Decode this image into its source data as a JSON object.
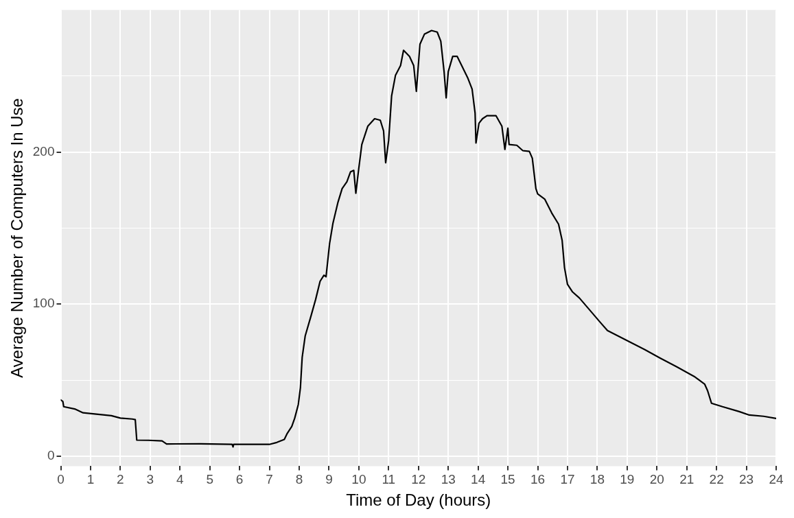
{
  "chart_data": {
    "type": "line",
    "xlabel": "Time of Day (hours)",
    "ylabel": "Average Number of Computers In Use",
    "xlim": [
      0,
      24
    ],
    "xticks": [
      0,
      1,
      2,
      3,
      4,
      5,
      6,
      7,
      8,
      9,
      10,
      11,
      12,
      13,
      14,
      15,
      16,
      17,
      18,
      19,
      20,
      21,
      22,
      23,
      24
    ],
    "ylim": [
      -6.6,
      293.6
    ],
    "yticks": [
      0,
      {
        "value": 50,
        "label": null
      },
      100,
      {
        "value": 150,
        "label": null
      },
      200,
      {
        "value": 250,
        "label": null
      }
    ],
    "grid": true,
    "legend": false,
    "marker": "none",
    "line_style": "solid",
    "series": [
      {
        "color": "#000000",
        "x": [
          0,
          0.07,
          0.1,
          0.47,
          0.75,
          1.7,
          2,
          2.4,
          2.5,
          2.55,
          2.95,
          3.4,
          3.55,
          4.7,
          5.75,
          5.78,
          5.8,
          7,
          7.25,
          7.5,
          7.6,
          7.75,
          7.85,
          7.97,
          8.04,
          8.1,
          8.2,
          8.4,
          8.55,
          8.7,
          8.83,
          8.9,
          9.02,
          9.13,
          9.3,
          9.44,
          9.6,
          9.72,
          9.83,
          9.9,
          10,
          10.1,
          10.3,
          10.53,
          10.72,
          10.83,
          10.9,
          11,
          11.1,
          11.23,
          11.4,
          11.5,
          11.7,
          11.84,
          11.93,
          12.05,
          12.2,
          12.44,
          12.63,
          12.75,
          12.86,
          12.93,
          13,
          13.15,
          13.3,
          13.45,
          13.65,
          13.8,
          13.9,
          13.93,
          14.03,
          14.15,
          14.3,
          14.6,
          14.8,
          14.9,
          15,
          15.04,
          15.3,
          15.5,
          15.72,
          15.82,
          15.94,
          16,
          16.24,
          16.47,
          16.7,
          16.82,
          16.9,
          17,
          17.17,
          17.4,
          17.75,
          18.1,
          18.34,
          18.7,
          19.15,
          19.6,
          20.1,
          20.67,
          21.25,
          21.6,
          21.7,
          21.83,
          22.2,
          22.76,
          23.1,
          23.58,
          24
        ],
        "values": [
          37,
          36,
          32.5,
          31,
          28.5,
          26.6,
          25,
          24.4,
          24,
          10.5,
          10.4,
          10,
          8,
          8.1,
          7.7,
          6,
          7.7,
          7.7,
          9,
          11,
          15,
          19.5,
          25,
          34,
          45,
          65,
          79,
          92.5,
          103,
          115,
          119,
          118,
          140,
          153,
          167,
          176,
          180.5,
          187,
          188,
          173,
          189.6,
          205,
          217,
          222,
          221,
          214,
          193,
          207.7,
          237,
          250.6,
          257,
          267,
          263,
          257,
          240,
          271,
          277.6,
          280,
          279,
          273,
          253,
          235.7,
          253,
          263,
          263,
          257,
          249,
          241.5,
          225.7,
          206,
          219,
          222,
          224,
          224,
          217,
          201.8,
          215.8,
          205,
          204.5,
          201,
          200.5,
          196,
          176,
          172.5,
          169,
          160,
          152.6,
          142,
          124,
          113,
          108,
          104,
          96,
          88,
          82.6,
          79,
          74.5,
          70,
          64.6,
          58.7,
          52.4,
          47.4,
          43,
          34.8,
          32.5,
          29.3,
          27,
          26.2,
          24.8
        ]
      }
    ]
  }
}
